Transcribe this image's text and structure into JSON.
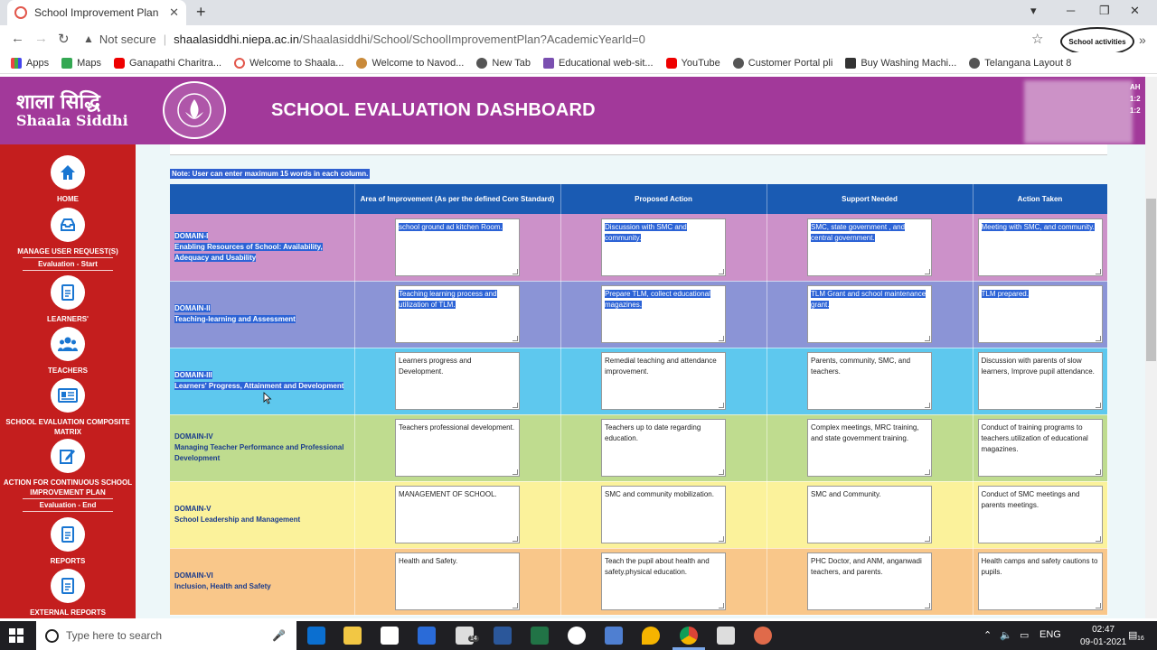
{
  "browser": {
    "tab_title": "School Improvement Plan",
    "tab_close": "✕",
    "new_tab": "+",
    "url_warning": "Not secure",
    "url_host": "shaalasiddhi.niepa.ac.in",
    "url_path": "/Shaalasiddhi/School/SchoolImprovementPlan?AcademicYearId=0",
    "extension_label": "School activities",
    "bookmarks": [
      "Apps",
      "Maps",
      "Ganapathi Charitra...",
      "Welcome to Shaala...",
      "Welcome to Navod...",
      "New Tab",
      "Educational web-sit...",
      "YouTube",
      "Customer Portal pli",
      "Buy Washing Machi...",
      "Telangana Layout 8"
    ]
  },
  "header": {
    "brand_hindi": "शाला सिद्धि",
    "brand_english": "Shaala Siddhi",
    "title": "SCHOOL EVALUATION DASHBOARD"
  },
  "sidebar": {
    "home": "HOME",
    "manage": "MANAGE USER REQUEST(S)",
    "eval_start": "Evaluation - Start",
    "learners": "LEARNERS'",
    "teachers": "TEACHERS",
    "matrix": "SCHOOL EVALUATION COMPOSITE MATRIX",
    "action": "ACTION FOR CONTINUOUS SCHOOL IMPROVEMENT PLAN",
    "eval_end": "Evaluation - End",
    "reports": "REPORTS",
    "external": "EXTERNAL REPORTS"
  },
  "main": {
    "note": "Note: User can enter maximum 15 words in each column.",
    "headers": [
      "",
      "Area of Improvement (As per the defined Core Standard)",
      "Proposed Action",
      "Support Needed",
      "Action Taken"
    ],
    "rows": [
      {
        "id": "DOMAIN-I",
        "name": "Enabling Resources of School: Availability, Adequacy and Usability",
        "color": "#cc91c9",
        "area": "school ground ad kitchen Room.",
        "proposed": "Discussion with SMC and community.",
        "support": "SMC, state government , and central government.",
        "taken": "Meeting with SMC, and community.",
        "selected": true
      },
      {
        "id": "DOMAIN-II",
        "name": "Teaching-learning and Assessment",
        "color": "#8b94d6",
        "area": "Teaching learning process and utilization of TLM.",
        "proposed": "Prepare TLM, collect educational magazines.",
        "support": "TLM Grant and school maintenance grant.",
        "taken": "TLM prepared.",
        "selected": true
      },
      {
        "id": "DOMAIN-III",
        "name": "Learners' Progress, Attainment and Development",
        "color": "#5ec8ee",
        "area": "Learners progress and Development.",
        "proposed": "Remedial teaching and attendance improvement.",
        "support": "Parents, community, SMC, and teachers.",
        "taken": "Discussion with parents of slow learners, Improve pupil attendance.",
        "selected": false,
        "domain_selected": true
      },
      {
        "id": "DOMAIN-IV",
        "name": "Managing Teacher Performance and Professional Development",
        "color": "#bfdc8f",
        "area": "Teachers professional development.",
        "proposed": "Teachers up to date regarding education.",
        "support": "Complex meetings, MRC training, and state government training.",
        "taken": "Conduct of training programs to teachers.utilization of educational magazines.",
        "selected": false
      },
      {
        "id": "DOMAIN-V",
        "name": "School Leadership and Management",
        "color": "#fbf29b",
        "area": "MANAGEMENT OF SCHOOL.",
        "proposed": "SMC and community mobilization.",
        "support": "SMC and Community.",
        "taken": "Conduct of SMC meetings and parents meetings.",
        "selected": false
      },
      {
        "id": "DOMAIN-VI",
        "name": "Inclusion, Health and Safety",
        "color": "#f9c78a",
        "area": "Health and Safety.",
        "proposed": "Teach the pupil about health and safety.physical education.",
        "support": "PHC Doctor, and ANM, anganwadi teachers, and parents.",
        "taken": "Health camps and safety cautions to pupils.",
        "selected": false
      }
    ]
  },
  "taskbar": {
    "search_placeholder": "Type here to search",
    "lang": "ENG",
    "time": "02:47",
    "date": "09-01-2021",
    "badge": "14",
    "notif": "16"
  }
}
